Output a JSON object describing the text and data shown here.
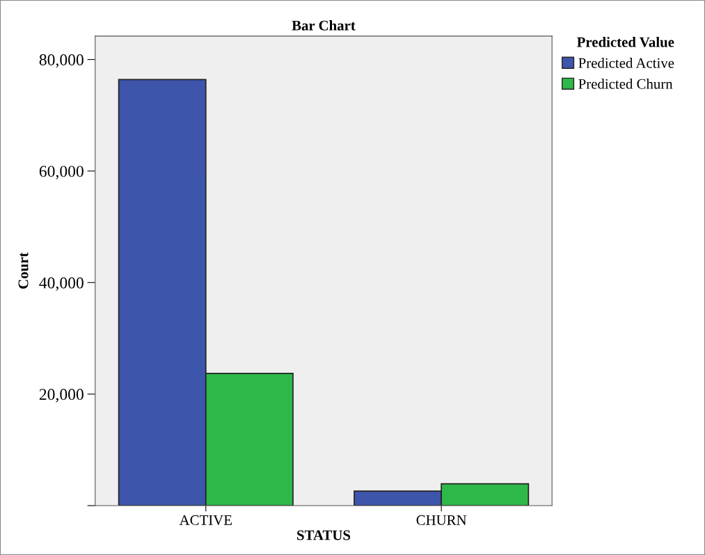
{
  "chart_data": {
    "type": "bar",
    "title": "Bar Chart",
    "xlabel": "STATUS",
    "ylabel": "Court",
    "legend_title": "Predicted Value",
    "categories": [
      "ACTIVE",
      "CHURN"
    ],
    "series": [
      {
        "name": "Predicted Active",
        "color": "#3d55aa",
        "values": [
          76400,
          2600
        ]
      },
      {
        "name": "Predicted Churn",
        "color": "#2eb84a",
        "values": [
          23700,
          3900
        ]
      }
    ],
    "ylim": [
      0,
      84200
    ],
    "yticks": [
      {
        "value": 0,
        "label": null
      },
      {
        "value": 20000,
        "label": "20,000"
      },
      {
        "value": 40000,
        "label": "40,000"
      },
      {
        "value": 60000,
        "label": "60,000"
      },
      {
        "value": 80000,
        "label": "80,000"
      }
    ],
    "grid": false,
    "legend": "top right"
  }
}
